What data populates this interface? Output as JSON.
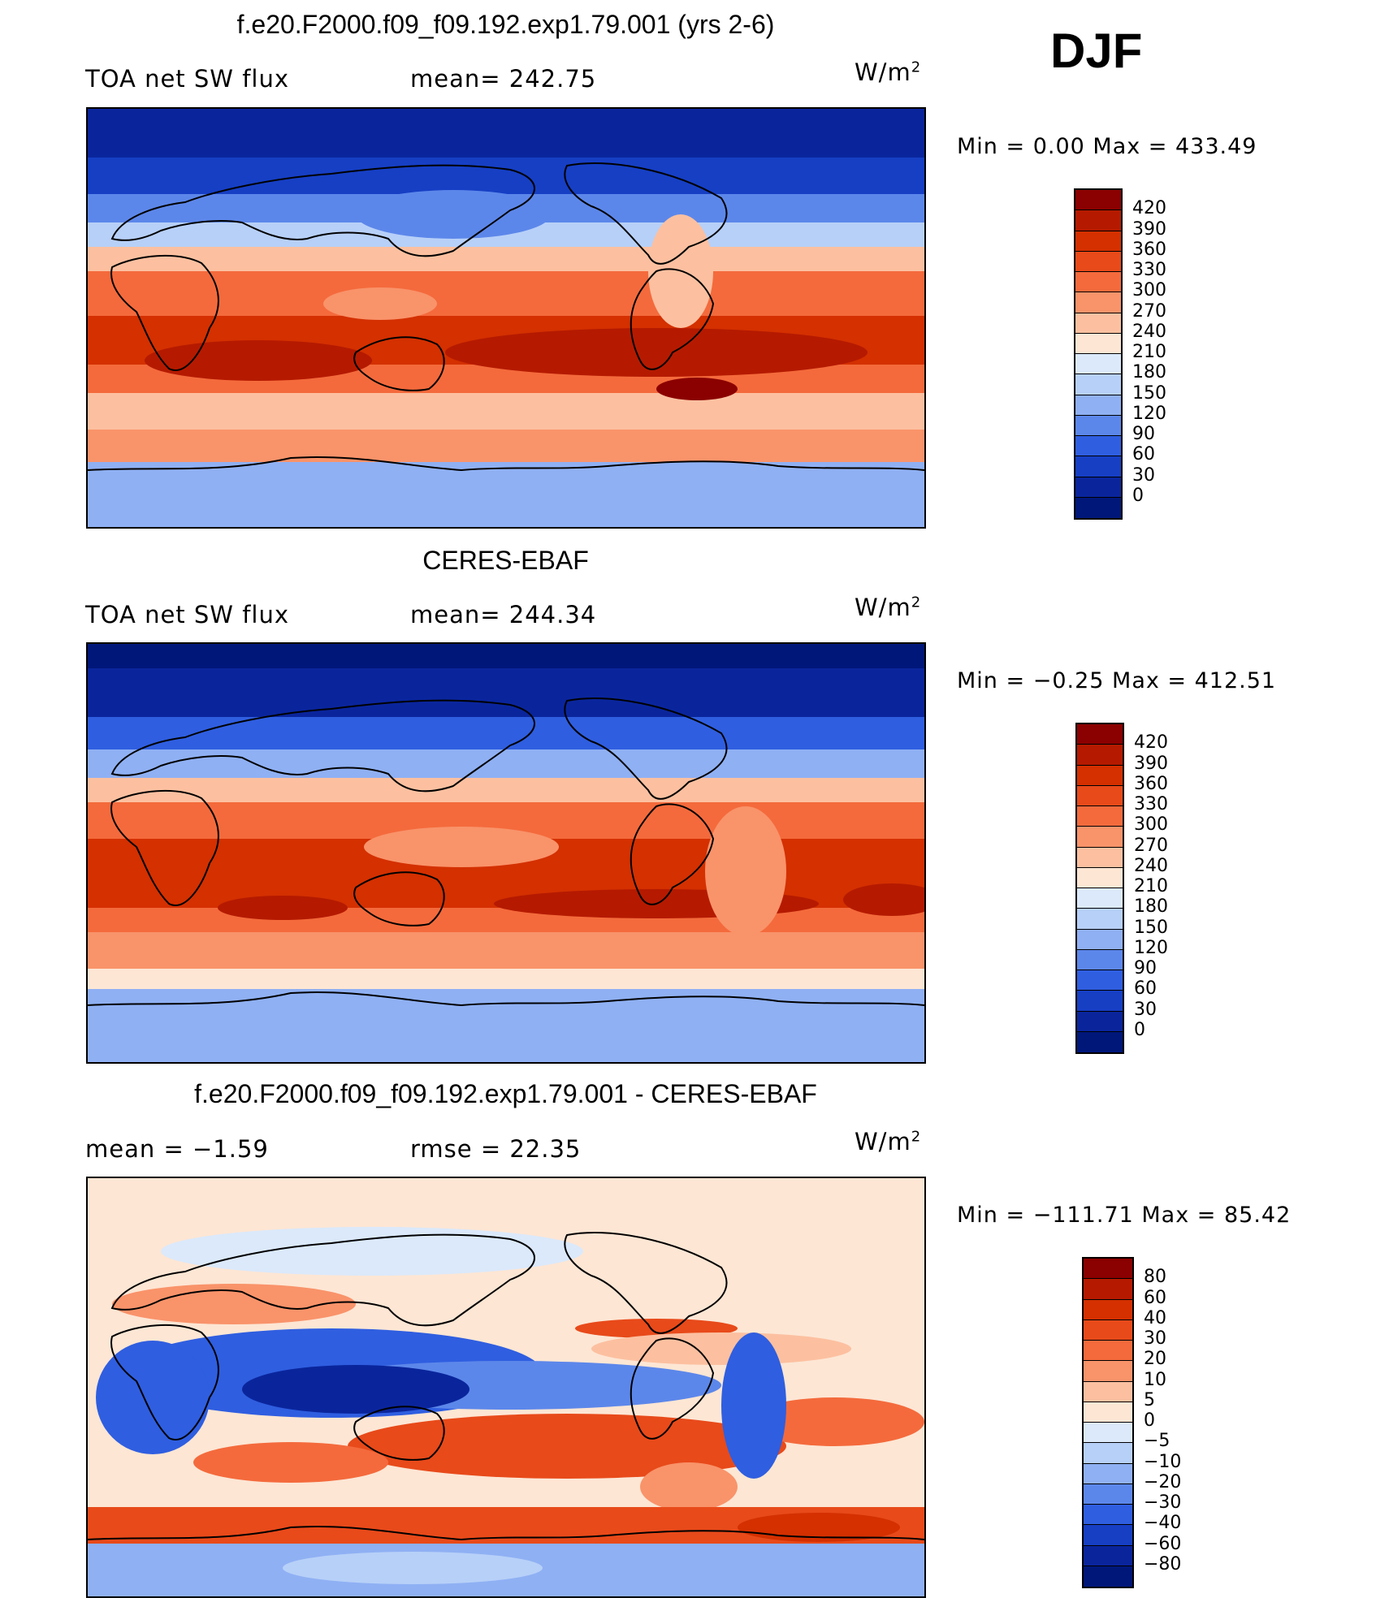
{
  "season": "DJF",
  "unit_base": "W/m",
  "unit_exp": "2",
  "panels": [
    {
      "title": "f.e20.F2000.f09_f09.192.exp1.79.001 (yrs 2-6)",
      "left_label": "TOA net SW flux",
      "stat_label": "mean= 242.75",
      "min_max": "Min =    0.00  Max = 433.49",
      "map_name": "Model TOA net SW flux map"
    },
    {
      "title": "CERES-EBAF",
      "left_label": "TOA net SW flux",
      "stat_label": "mean= 244.34",
      "min_max": "Min =  −0.25  Max = 412.51",
      "map_name": "Observed TOA net SW flux map"
    },
    {
      "title": "f.e20.F2000.f09_f09.192.exp1.79.001 - CERES-EBAF",
      "left_label": "mean =   −1.59",
      "stat_label": "rmse =   22.35",
      "min_max": "Min = −111.71  Max =   85.42",
      "map_name": "Difference map"
    }
  ],
  "colorbars": [
    {
      "labels": [
        "420",
        "390",
        "360",
        "330",
        "300",
        "270",
        "240",
        "210",
        "180",
        "150",
        "120",
        "90",
        "60",
        "30",
        "0"
      ],
      "colors": [
        "#8b0000",
        "#b51a00",
        "#d43000",
        "#e84a1a",
        "#f46a3c",
        "#f9936a",
        "#fcc0a0",
        "#fde6d4",
        "#dbe9fb",
        "#b7d0f8",
        "#8fb0f3",
        "#5c87ea",
        "#2f5ee0",
        "#163fc4",
        "#0a259c",
        "#00177a"
      ]
    },
    {
      "labels": [
        "420",
        "390",
        "360",
        "330",
        "300",
        "270",
        "240",
        "210",
        "180",
        "150",
        "120",
        "90",
        "60",
        "30",
        "0"
      ],
      "colors": [
        "#8b0000",
        "#b51a00",
        "#d43000",
        "#e84a1a",
        "#f46a3c",
        "#f9936a",
        "#fcc0a0",
        "#fde6d4",
        "#dbe9fb",
        "#b7d0f8",
        "#8fb0f3",
        "#5c87ea",
        "#2f5ee0",
        "#163fc4",
        "#0a259c",
        "#00177a"
      ]
    },
    {
      "labels": [
        "80",
        "60",
        "40",
        "30",
        "20",
        "10",
        "5",
        "0",
        "−5",
        "−10",
        "−20",
        "−30",
        "−40",
        "−60",
        "−80"
      ],
      "colors": [
        "#8b0000",
        "#b51a00",
        "#d43000",
        "#e84a1a",
        "#f46a3c",
        "#f9936a",
        "#fcc0a0",
        "#fde6d4",
        "#dbe9fb",
        "#b7d0f8",
        "#8fb0f3",
        "#5c87ea",
        "#2f5ee0",
        "#163fc4",
        "#0a259c",
        "#00177a"
      ]
    }
  ]
}
